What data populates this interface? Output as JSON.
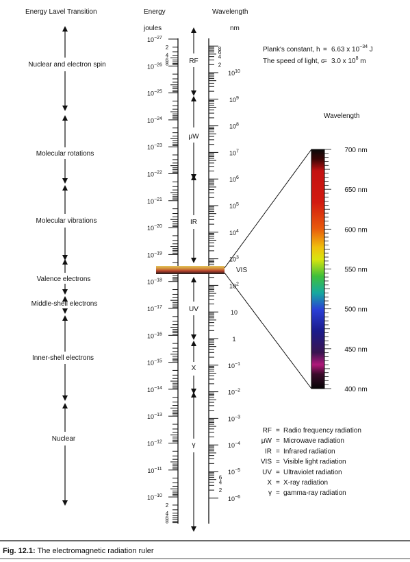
{
  "headers": {
    "transition": "Energy Lavel Transition",
    "energy": "Energy",
    "joules": "joules",
    "wavelength": "Wavelength",
    "nm": "nm"
  },
  "constants": {
    "plank_label": "Plank's constant, h",
    "plank_eq": "=",
    "plank_mantissa": "6.63 x 10",
    "plank_exp": "−34",
    "plank_unit": " J",
    "light_label": "The speed of light, c",
    "light_eq": "=",
    "light_mantissa": "3.0 x 10",
    "light_exp": "8",
    "light_unit": " m"
  },
  "transitions": [
    "Nuclear and electron spin",
    "Molecular rotations",
    "Molecular vibrations",
    "Valence electrons",
    "Middle-shell electrons",
    "Inner-shell electrons",
    "Nuclear"
  ],
  "energy_labels": [
    {
      "base": "10",
      "exp": "−27"
    },
    {
      "base": "10",
      "exp": "−26"
    },
    {
      "base": "10",
      "exp": "−25"
    },
    {
      "base": "10",
      "exp": "−24"
    },
    {
      "base": "10",
      "exp": "−23"
    },
    {
      "base": "10",
      "exp": "−22"
    },
    {
      "base": "10",
      "exp": "−21"
    },
    {
      "base": "10",
      "exp": "−20"
    },
    {
      "base": "10",
      "exp": "−19"
    },
    {
      "base": "10",
      "exp": "−18"
    },
    {
      "base": "10",
      "exp": "−17"
    },
    {
      "base": "10",
      "exp": "−16"
    },
    {
      "base": "10",
      "exp": "−15"
    },
    {
      "base": "10",
      "exp": "−14"
    },
    {
      "base": "10",
      "exp": "−13"
    },
    {
      "base": "10",
      "exp": "−12"
    },
    {
      "base": "10",
      "exp": "−11"
    },
    {
      "base": "10",
      "exp": "−10"
    }
  ],
  "energy_top_minor": [
    "2",
    "4",
    "6",
    "8"
  ],
  "energy_bottom_minor": [
    "2",
    "4",
    "6",
    "8"
  ],
  "wavelength_labels": [
    {
      "base": "10",
      "exp": "10"
    },
    {
      "base": "10",
      "exp": "9"
    },
    {
      "base": "10",
      "exp": "8"
    },
    {
      "base": "10",
      "exp": "7"
    },
    {
      "base": "10",
      "exp": "6"
    },
    {
      "base": "10",
      "exp": "5"
    },
    {
      "base": "10",
      "exp": "4"
    },
    {
      "base": "10",
      "exp": "3"
    },
    {
      "base": "10",
      "exp": "2"
    },
    {
      "base": "10",
      "exp": ""
    },
    {
      "base": "1",
      "exp": ""
    },
    {
      "base": "10",
      "exp": "−1"
    },
    {
      "base": "10",
      "exp": "−2"
    },
    {
      "base": "10",
      "exp": "−3"
    },
    {
      "base": "10",
      "exp": "−4"
    },
    {
      "base": "10",
      "exp": "−5"
    },
    {
      "base": "10",
      "exp": "−6"
    }
  ],
  "wavelength_top_minor": [
    "8",
    "6",
    "4",
    "2"
  ],
  "wavelength_bottom_minor": [
    "6",
    "4",
    "2"
  ],
  "regions": [
    "RF",
    "μW",
    "IR",
    "UV",
    "X",
    "γ"
  ],
  "vis_label": "VIS",
  "spectrum": {
    "title": "Wavelength",
    "labels": [
      "700 nm",
      "650 nm",
      "600 nm",
      "550 nm",
      "500 nm",
      "450 nm",
      "400 nm"
    ]
  },
  "legend": [
    {
      "abbr": "RF",
      "desc": "Radio frequency radiation"
    },
    {
      "abbr": "μW",
      "desc": "Microwave radiation"
    },
    {
      "abbr": "IR",
      "desc": "Infrared radiation"
    },
    {
      "abbr": "VIS",
      "desc": "Visible light radiation"
    },
    {
      "abbr": "UV",
      "desc": "Ultraviolet radiation"
    },
    {
      "abbr": "X",
      "desc": "X-ray radiation"
    },
    {
      "abbr": "γ",
      "desc": "gamma-ray radiation"
    }
  ],
  "caption": {
    "label": "Fig. 12.1:",
    "text": " The electromagnetic radiation ruler"
  },
  "colors": {
    "ink": "#111111",
    "vis_band_top": "#c9a43c",
    "vis_band_mid": "#c25a3a",
    "spectrum_red": "#cc1414",
    "spectrum_yellow": "#f0e10a",
    "spectrum_green": "#3fbf3a",
    "spectrum_blue": "#2a3fd6"
  }
}
